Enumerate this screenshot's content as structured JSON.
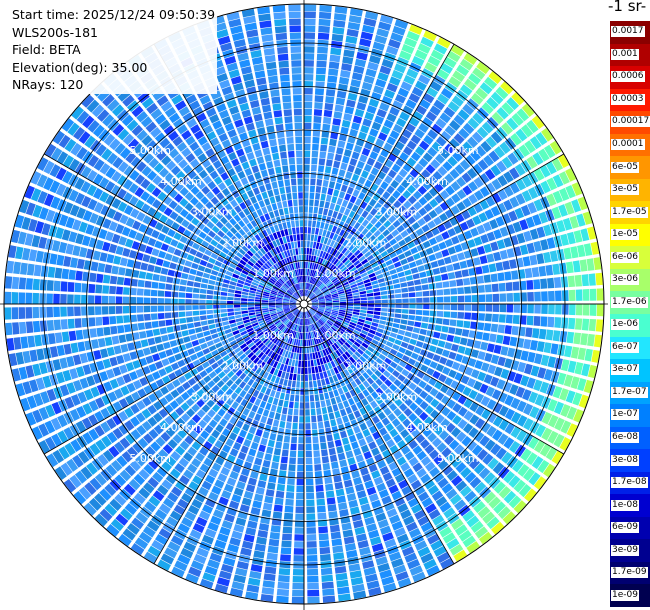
{
  "header": {
    "start_time": "Start time: 2025/12/24 09:50:39",
    "device": "WLS200s-181",
    "field": "Field: BETA",
    "elevation": "Elevation(deg): 35.00",
    "nrays": "NRays: 120"
  },
  "colorbar": {
    "unit_title": "-1 sr-",
    "labels": [
      "0.0017",
      "0.001",
      "0.0006",
      "0.0003",
      "0.00017",
      "0.0001",
      "6e-05",
      "3e-05",
      "1.7e-05",
      "1e-05",
      "6e-06",
      "3e-06",
      "1.7e-06",
      "1e-06",
      "6e-07",
      "3e-07",
      "1.7e-07",
      "1e-07",
      "6e-08",
      "3e-08",
      "1.7e-08",
      "1e-08",
      "6e-09",
      "3e-09",
      "1.7e-09",
      "1e-09"
    ],
    "colors": [
      "#8b0000",
      "#b00000",
      "#d80000",
      "#ff1a00",
      "#ff4a00",
      "#ff7000",
      "#ff9600",
      "#ffb400",
      "#ffd400",
      "#ffff00",
      "#d8ff3a",
      "#a8ff6a",
      "#78ffa0",
      "#4affd0",
      "#22e6ff",
      "#00c4ff",
      "#00a2ff",
      "#0080ff",
      "#0060ff",
      "#0040ff",
      "#0020e8",
      "#0000d0",
      "#0000b0",
      "#000090",
      "#000070",
      "#000050"
    ]
  },
  "range_rings": {
    "labels": [
      "1.00km",
      "2.00km",
      "3.00km",
      "4.00km",
      "5.00km"
    ]
  }
}
